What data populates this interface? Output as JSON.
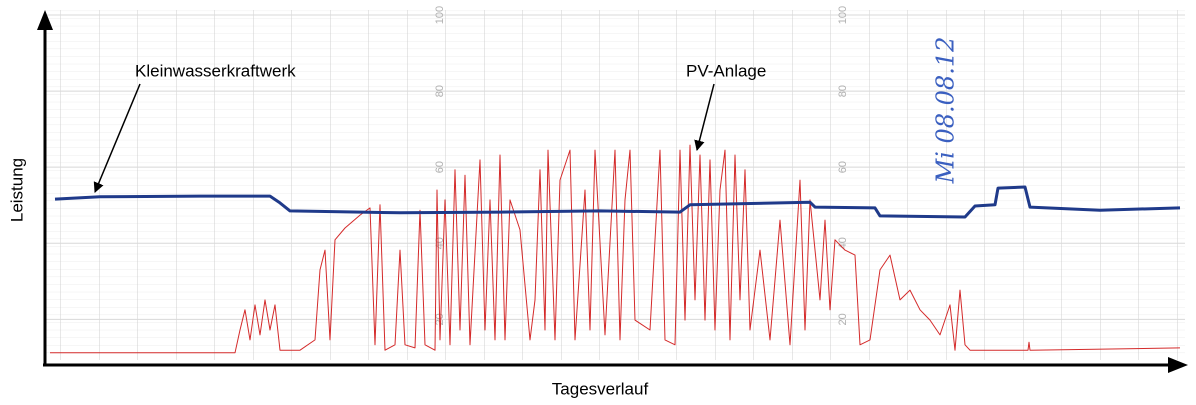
{
  "chart_data": {
    "type": "line",
    "xlabel": "Tagesverlauf",
    "ylabel": "Leistung",
    "note": "Mi 08.08.12",
    "xlim": [
      0,
      1140
    ],
    "ylim": [
      8,
      100
    ],
    "yticks": [
      20,
      40,
      60,
      80,
      100
    ],
    "grid": true,
    "series": [
      {
        "name": "Kleinwasserkraftwerk",
        "color": "#1f3a8a",
        "x": [
          10,
          55,
          155,
          225,
          235,
          245,
          355,
          455,
          555,
          635,
          645,
          765,
          770,
          830,
          835,
          920,
          930,
          950,
          953,
          980,
          985,
          1055,
          1135
        ],
        "values": [
          51.6,
          52.2,
          52.4,
          52.4,
          50.6,
          48.5,
          48.0,
          48.2,
          48.5,
          48.2,
          50.1,
          50.8,
          49.5,
          49.3,
          47.2,
          46.9,
          49.8,
          50.1,
          54.5,
          54.8,
          49.5,
          48.7,
          49.3
        ]
      },
      {
        "name": "PV-Anlage",
        "color": "#d42a2a",
        "x": [
          5,
          190,
          195,
          200,
          205,
          210,
          215,
          220,
          225,
          230,
          235,
          255,
          270,
          275,
          280,
          285,
          290,
          300,
          315,
          325,
          330,
          335,
          340,
          350,
          355,
          360,
          370,
          375,
          380,
          390,
          392,
          395,
          400,
          405,
          410,
          415,
          420,
          425,
          435,
          440,
          445,
          450,
          455,
          460,
          465,
          475,
          485,
          490,
          495,
          500,
          503,
          510,
          515,
          525,
          530,
          540,
          545,
          550,
          560,
          570,
          575,
          580,
          585,
          590,
          605,
          615,
          620,
          630,
          635,
          640,
          645,
          650,
          655,
          660,
          665,
          670,
          675,
          680,
          685,
          690,
          695,
          700,
          705,
          715,
          725,
          735,
          745,
          755,
          760,
          765,
          775,
          780,
          785,
          790,
          800,
          810,
          815,
          825,
          835,
          845,
          855,
          865,
          875,
          885,
          895,
          905,
          910,
          915,
          920,
          925,
          983,
          984,
          985,
          1135
        ],
        "values": [
          11.2,
          11.2,
          17.2,
          22.5,
          14.6,
          23.8,
          15.9,
          25.1,
          17.2,
          23.8,
          11.9,
          11.9,
          14.6,
          33.0,
          38.2,
          14.6,
          40.9,
          44.0,
          47.4,
          49.3,
          13.3,
          50.1,
          11.9,
          13.3,
          38.2,
          13.3,
          12.5,
          48.7,
          13.3,
          11.9,
          54.0,
          14.6,
          51.4,
          13.3,
          59.3,
          17.2,
          57.9,
          13.3,
          61.9,
          17.2,
          51.4,
          14.6,
          63.2,
          14.6,
          51.4,
          43.5,
          14.6,
          25.1,
          59.3,
          17.2,
          64.5,
          14.6,
          56.6,
          64.5,
          14.6,
          54.0,
          17.2,
          64.5,
          15.9,
          64.5,
          14.6,
          51.4,
          64.5,
          19.8,
          17.2,
          64.5,
          14.6,
          13.3,
          64.5,
          19.8,
          65.8,
          25.1,
          63.2,
          19.8,
          61.9,
          17.2,
          54.0,
          64.5,
          14.6,
          63.2,
          25.1,
          59.3,
          17.2,
          38.2,
          14.6,
          46.1,
          13.3,
          56.6,
          17.2,
          51.4,
          25.1,
          46.1,
          22.5,
          40.9,
          38.2,
          36.9,
          13.3,
          14.6,
          33.0,
          36.9,
          25.1,
          27.7,
          22.5,
          19.8,
          15.9,
          23.8,
          11.9,
          27.7,
          13.3,
          11.9,
          11.9,
          14.0,
          11.9,
          12.5
        ]
      }
    ]
  }
}
